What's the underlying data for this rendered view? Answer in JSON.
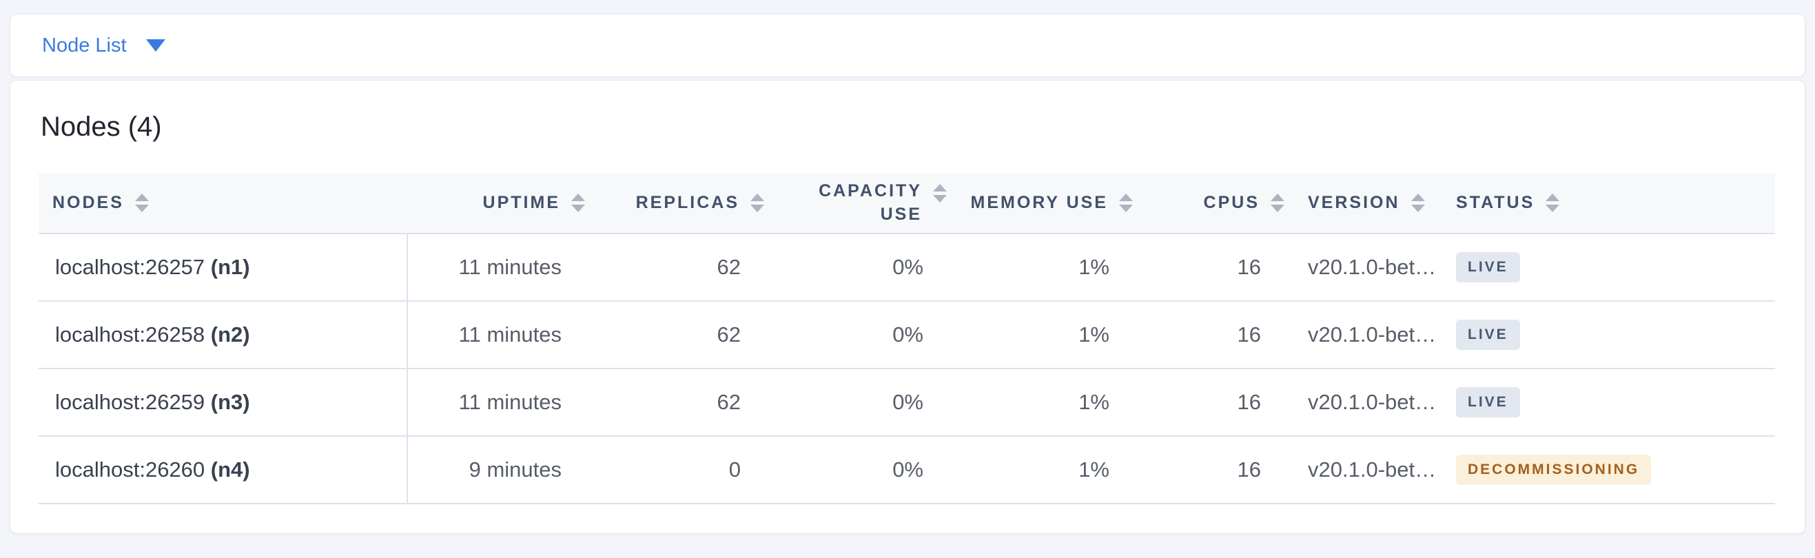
{
  "page": {
    "background": "#F3F5FA"
  },
  "view_selector": {
    "label": "Node List",
    "accent_color": "#3B7AE2"
  },
  "summary": {
    "title": "Nodes (4)"
  },
  "table": {
    "columns": [
      {
        "key": "nodes",
        "label": "NODES",
        "align": "left"
      },
      {
        "key": "uptime",
        "label": "UPTIME",
        "align": "right"
      },
      {
        "key": "replicas",
        "label": "REPLICAS",
        "align": "right"
      },
      {
        "key": "capacity-use",
        "label": "CAPACITY USE",
        "label_lines": [
          "CAPACITY",
          "USE"
        ],
        "align": "right"
      },
      {
        "key": "memory-use",
        "label": "MEMORY USE",
        "align": "right"
      },
      {
        "key": "cpus",
        "label": "CPUS",
        "align": "right"
      },
      {
        "key": "version",
        "label": "VERSION",
        "align": "left"
      },
      {
        "key": "status",
        "label": "STATUS",
        "align": "left"
      }
    ],
    "rows": [
      {
        "node": "localhost:26257",
        "node_id": "(n1)",
        "uptime": "11 minutes",
        "replicas": "62",
        "capacity_use": "0%",
        "memory_use": "1%",
        "cpus": "16",
        "version": "v20.1.0-bet…",
        "status": "LIVE",
        "status_type": "live"
      },
      {
        "node": "localhost:26258",
        "node_id": "(n2)",
        "uptime": "11 minutes",
        "replicas": "62",
        "capacity_use": "0%",
        "memory_use": "1%",
        "cpus": "16",
        "version": "v20.1.0-bet…",
        "status": "LIVE",
        "status_type": "live"
      },
      {
        "node": "localhost:26259",
        "node_id": "(n3)",
        "uptime": "11 minutes",
        "replicas": "62",
        "capacity_use": "0%",
        "memory_use": "1%",
        "cpus": "16",
        "version": "v20.1.0-bet…",
        "status": "LIVE",
        "status_type": "live"
      },
      {
        "node": "localhost:26260",
        "node_id": "(n4)",
        "uptime": "9 minutes",
        "replicas": "0",
        "capacity_use": "0%",
        "memory_use": "1%",
        "cpus": "16",
        "version": "v20.1.0-bet…",
        "status": "DECOMMISSIONING",
        "status_type": "decommissioning"
      }
    ]
  },
  "status_styles": {
    "live": {
      "bg": "#E3E7F0",
      "color": "#475872"
    },
    "decommissioning": {
      "bg": "#FAF0DC",
      "color": "#A75E1C"
    }
  }
}
